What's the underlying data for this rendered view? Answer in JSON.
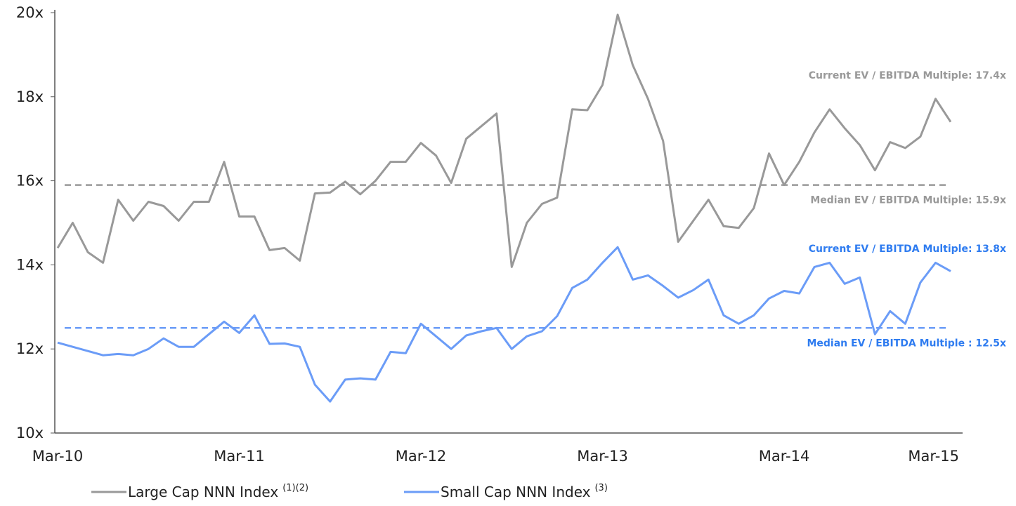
{
  "chart_data": {
    "type": "line",
    "categories": [
      "Mar-10",
      null,
      null,
      null,
      null,
      null,
      null,
      null,
      null,
      null,
      null,
      null,
      "Mar-11",
      null,
      null,
      null,
      null,
      null,
      null,
      null,
      null,
      null,
      null,
      null,
      "Mar-12",
      null,
      null,
      null,
      null,
      null,
      null,
      null,
      null,
      null,
      null,
      null,
      "Mar-13",
      null,
      null,
      null,
      null,
      null,
      null,
      null,
      null,
      null,
      null,
      null,
      "Mar-14",
      null,
      null,
      null,
      null,
      null,
      null,
      null,
      null,
      null,
      null,
      "Mar-15"
    ],
    "series": [
      {
        "name": "Large Cap NNN Index",
        "footnote": "(1)(2)",
        "color": "#999999",
        "values": [
          14.4,
          15.0,
          14.3,
          14.05,
          15.55,
          15.05,
          15.5,
          15.4,
          15.05,
          15.5,
          15.5,
          16.45,
          15.15,
          15.15,
          14.35,
          14.4,
          14.1,
          15.7,
          15.72,
          15.98,
          15.68,
          16.0,
          16.45,
          16.45,
          16.9,
          16.6,
          15.95,
          17.0,
          17.3,
          17.6,
          13.95,
          15.0,
          15.45,
          15.6,
          17.7,
          17.68,
          18.28,
          19.95,
          18.75,
          17.95,
          16.95,
          14.55,
          15.05,
          15.55,
          14.92,
          14.88,
          15.35,
          16.65,
          15.9,
          16.45,
          17.15,
          17.7,
          17.25,
          16.85,
          16.25,
          16.92,
          16.78,
          17.05,
          17.95,
          17.4
        ]
      },
      {
        "name": "Small Cap NNN Index",
        "footnote": "(3)",
        "color": "#6b9cf7",
        "values": [
          12.15,
          12.05,
          11.95,
          11.85,
          11.88,
          11.85,
          12.0,
          12.25,
          12.05,
          12.05,
          12.35,
          12.65,
          12.38,
          12.8,
          12.12,
          12.13,
          12.05,
          11.15,
          10.75,
          11.27,
          11.3,
          11.27,
          11.93,
          11.9,
          12.6,
          12.3,
          12.0,
          12.32,
          12.42,
          12.5,
          12.0,
          12.3,
          12.42,
          12.78,
          13.45,
          13.65,
          14.05,
          14.42,
          13.65,
          13.75,
          13.5,
          13.22,
          13.4,
          13.65,
          12.8,
          12.6,
          12.8,
          13.2,
          13.38,
          13.32,
          13.95,
          14.05,
          13.55,
          13.7,
          12.35,
          12.9,
          12.6,
          13.58,
          14.05,
          13.85
        ]
      }
    ],
    "reference_lines": [
      {
        "value": 15.9,
        "color": "#999999",
        "label": "Median EV / EBITDA Multiple: 15.9x",
        "current_label": "Current EV / EBITDA Multiple: 17.4x"
      },
      {
        "value": 12.5,
        "color": "#6b9cf7",
        "label": "Median EV / EBITDA Multiple : 12.5x",
        "current_label": "Current EV / EBITDA Multiple: 13.8x"
      }
    ],
    "label_colors": [
      "#999999",
      "#2f7cf0"
    ],
    "ylim": [
      10,
      20
    ],
    "yticks": [
      {
        "value": 10,
        "label": "10x"
      },
      {
        "value": 12,
        "label": "12x"
      },
      {
        "value": 14,
        "label": "14x"
      },
      {
        "value": 16,
        "label": "16x"
      },
      {
        "value": 18,
        "label": "18x"
      },
      {
        "value": 20,
        "label": "20x"
      }
    ],
    "legend": "bottom-left"
  }
}
